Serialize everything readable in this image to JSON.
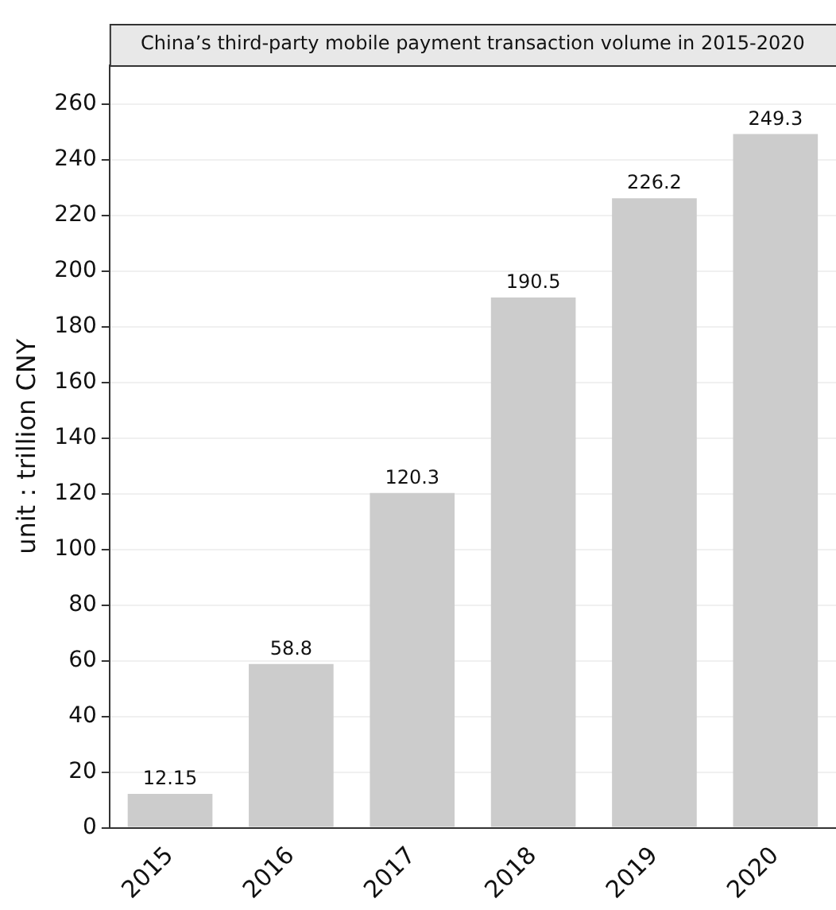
{
  "chart_data": {
    "type": "bar",
    "title": "China’s third-party mobile payment transaction volume in 2015-2020",
    "ylabel": "unit：trillion CNY",
    "categories": [
      "2015",
      "2016",
      "2017",
      "2018",
      "2019",
      "2020"
    ],
    "values": [
      12.15,
      58.8,
      120.3,
      190.5,
      226.2,
      249.3
    ],
    "color": "#cccccc",
    "ylim": [
      0,
      274
    ],
    "yticks": [
      0,
      20,
      40,
      60,
      80,
      100,
      120,
      140,
      160,
      180,
      200,
      220,
      240,
      260
    ],
    "grid": "y",
    "data_labels": true
  }
}
